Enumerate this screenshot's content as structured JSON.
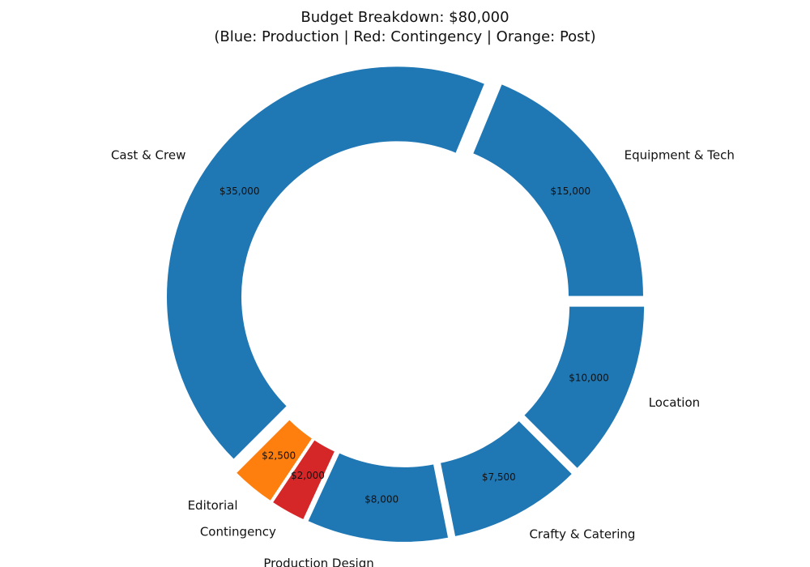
{
  "chart_data": {
    "type": "pie",
    "variant": "donut",
    "title": "Budget Breakdown: $80,000",
    "subtitle": "(Blue: Production | Red: Contingency | Orange: Post)",
    "total": 80000,
    "colors": {
      "production": "#1f77b4",
      "contingency": "#d62728",
      "post": "#ff7f0e"
    },
    "slices": [
      {
        "label": "Cast & Crew",
        "value": 35000,
        "value_label": "$35,000",
        "group": "production"
      },
      {
        "label": "Equipment & Tech",
        "value": 15000,
        "value_label": "$15,000",
        "group": "production"
      },
      {
        "label": "Location",
        "value": 10000,
        "value_label": "$10,000",
        "group": "production"
      },
      {
        "label": "Crafty & Catering",
        "value": 7500,
        "value_label": "$7,500",
        "group": "production"
      },
      {
        "label": "Production Design",
        "value": 8000,
        "value_label": "$8,000",
        "group": "production"
      },
      {
        "label": "Contingency",
        "value": 2000,
        "value_label": "$2,000",
        "group": "contingency"
      },
      {
        "label": "Editorial",
        "value": 2500,
        "value_label": "$2,500",
        "group": "post"
      }
    ]
  }
}
